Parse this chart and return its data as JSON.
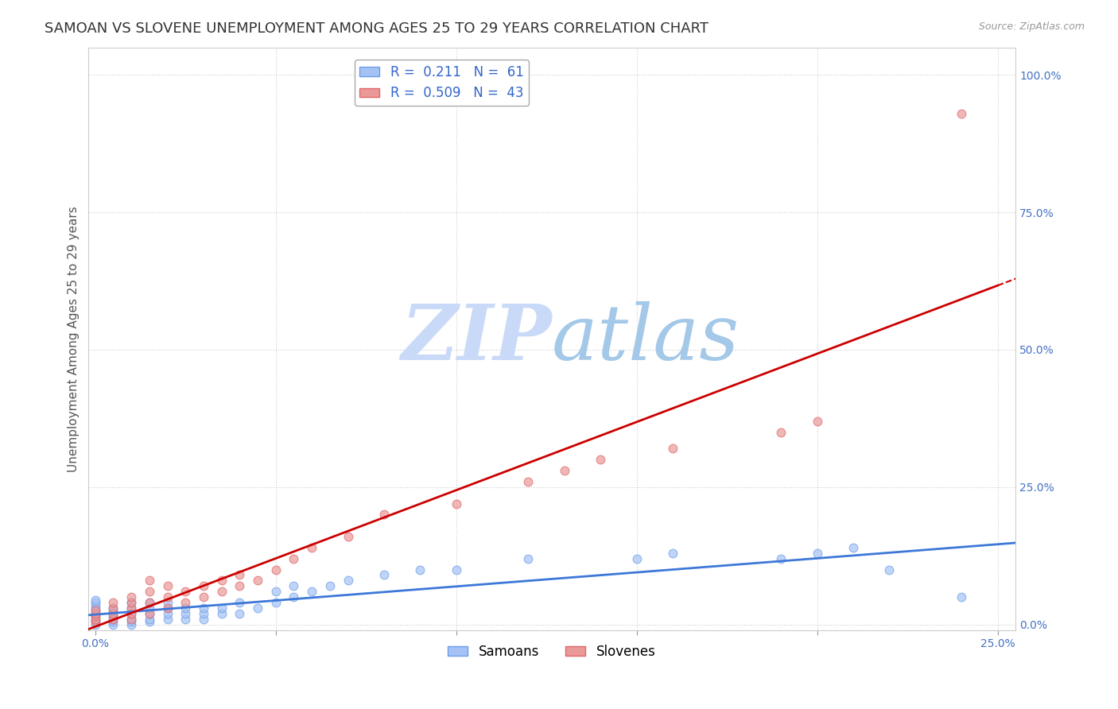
{
  "title": "SAMOAN VS SLOVENE UNEMPLOYMENT AMONG AGES 25 TO 29 YEARS CORRELATION CHART",
  "source": "Source: ZipAtlas.com",
  "ylabel": "Unemployment Among Ages 25 to 29 years",
  "xlim": [
    -0.002,
    0.255
  ],
  "ylim": [
    -0.01,
    1.05
  ],
  "xticks": [
    0.0,
    0.05,
    0.1,
    0.15,
    0.2,
    0.25
  ],
  "yticks": [
    0.0,
    0.25,
    0.5,
    0.75,
    1.0
  ],
  "xtick_labels": [
    "0.0%",
    "",
    "",
    "",
    "",
    "25.0%"
  ],
  "ytick_labels": [
    "0.0%",
    "25.0%",
    "50.0%",
    "75.0%",
    "100.0%"
  ],
  "samoan_R": 0.211,
  "samoan_N": 61,
  "slovene_R": 0.509,
  "slovene_N": 43,
  "samoan_color": "#a4c2f4",
  "slovene_color": "#ea9999",
  "samoan_edge_color": "#6d9eeb",
  "slovene_edge_color": "#e06666",
  "samoan_line_color": "#3d78d8",
  "slovene_line_color": "#cc0000",
  "background_color": "#ffffff",
  "watermark_text": "ZIPatlas",
  "watermark_color_zip": "#c9daf8",
  "watermark_color_atlas": "#b4d7ff",
  "title_fontsize": 13,
  "axis_label_fontsize": 11,
  "tick_fontsize": 10,
  "legend_fontsize": 12,
  "grid_color": "#cccccc",
  "grid_linestyle": ":",
  "marker_size": 60,
  "samoan_x": [
    0.0,
    0.0,
    0.0,
    0.0,
    0.0,
    0.0,
    0.0,
    0.0,
    0.0,
    0.0,
    0.005,
    0.005,
    0.005,
    0.005,
    0.005,
    0.005,
    0.005,
    0.01,
    0.01,
    0.01,
    0.01,
    0.01,
    0.01,
    0.015,
    0.015,
    0.015,
    0.015,
    0.015,
    0.02,
    0.02,
    0.02,
    0.02,
    0.025,
    0.025,
    0.025,
    0.03,
    0.03,
    0.03,
    0.035,
    0.035,
    0.04,
    0.04,
    0.045,
    0.05,
    0.05,
    0.055,
    0.055,
    0.06,
    0.065,
    0.07,
    0.08,
    0.09,
    0.1,
    0.12,
    0.15,
    0.16,
    0.19,
    0.2,
    0.21,
    0.22,
    0.24
  ],
  "samoan_y": [
    0.0,
    0.005,
    0.01,
    0.015,
    0.02,
    0.025,
    0.03,
    0.035,
    0.04,
    0.045,
    0.0,
    0.005,
    0.01,
    0.015,
    0.02,
    0.025,
    0.03,
    0.0,
    0.005,
    0.01,
    0.02,
    0.03,
    0.04,
    0.005,
    0.01,
    0.02,
    0.03,
    0.04,
    0.01,
    0.02,
    0.03,
    0.04,
    0.01,
    0.02,
    0.03,
    0.01,
    0.02,
    0.03,
    0.02,
    0.03,
    0.02,
    0.04,
    0.03,
    0.04,
    0.06,
    0.05,
    0.07,
    0.06,
    0.07,
    0.08,
    0.09,
    0.1,
    0.1,
    0.12,
    0.12,
    0.13,
    0.12,
    0.13,
    0.14,
    0.1,
    0.05
  ],
  "slovene_x": [
    0.0,
    0.0,
    0.0,
    0.0,
    0.0,
    0.005,
    0.005,
    0.005,
    0.005,
    0.01,
    0.01,
    0.01,
    0.01,
    0.01,
    0.015,
    0.015,
    0.015,
    0.015,
    0.02,
    0.02,
    0.02,
    0.025,
    0.025,
    0.03,
    0.03,
    0.035,
    0.035,
    0.04,
    0.04,
    0.045,
    0.05,
    0.055,
    0.06,
    0.07,
    0.08,
    0.1,
    0.12,
    0.13,
    0.14,
    0.16,
    0.19,
    0.2,
    0.24
  ],
  "slovene_y": [
    0.005,
    0.01,
    0.015,
    0.02,
    0.025,
    0.01,
    0.02,
    0.03,
    0.04,
    0.01,
    0.02,
    0.03,
    0.04,
    0.05,
    0.02,
    0.04,
    0.06,
    0.08,
    0.03,
    0.05,
    0.07,
    0.04,
    0.06,
    0.05,
    0.07,
    0.06,
    0.08,
    0.07,
    0.09,
    0.08,
    0.1,
    0.12,
    0.14,
    0.16,
    0.2,
    0.22,
    0.26,
    0.28,
    0.3,
    0.32,
    0.35,
    0.37,
    0.93
  ]
}
